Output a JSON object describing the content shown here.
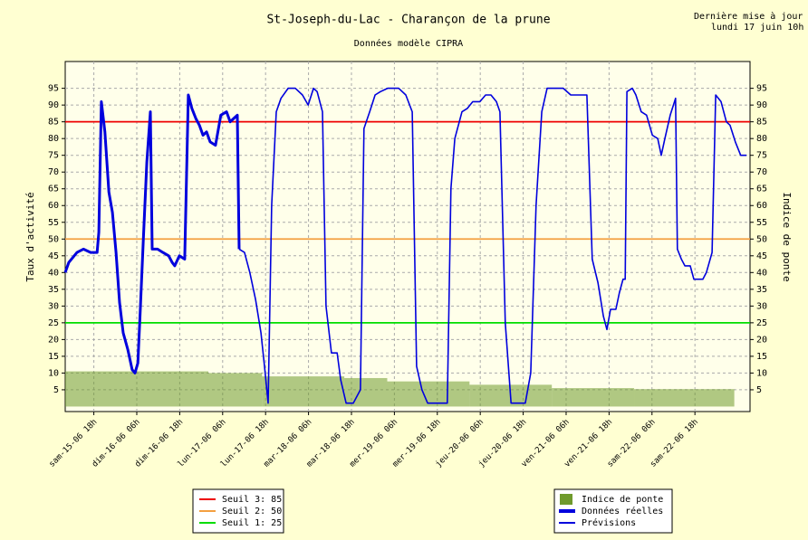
{
  "chart_data": {
    "type": "line",
    "title": "St-Joseph-du-Lac - Charançon de la prune",
    "subtitle": "Données modèle CIPRA",
    "update_lines": [
      "Dernière mise à jour",
      "lundi 17 juin 10h"
    ],
    "y_label": "Taux d'activité",
    "y2_label": "Indice de ponte",
    "xlim": [
      0,
      191.4
    ],
    "xticks": [
      {
        "value": 8,
        "label": "sam-15-06 18h"
      },
      {
        "value": 20,
        "label": "dim-16-06 06h"
      },
      {
        "value": 32,
        "label": "dim-16-06 18h"
      },
      {
        "value": 44,
        "label": "lun-17-06 06h"
      },
      {
        "value": 56,
        "label": "lun-17-06 18h"
      },
      {
        "value": 68,
        "label": "mar-18-06 06h"
      },
      {
        "value": 80,
        "label": "mar-18-06 18h"
      },
      {
        "value": 92,
        "label": "mer-19-06 06h"
      },
      {
        "value": 104,
        "label": "mer-19-06 18h"
      },
      {
        "value": 116,
        "label": "jeu-20-06 06h"
      },
      {
        "value": 128,
        "label": "jeu-20-06 18h"
      },
      {
        "value": 140,
        "label": "ven-21-06 06h"
      },
      {
        "value": 152,
        "label": "ven-21-06 18h"
      },
      {
        "value": 164,
        "label": "sam-22-06 06h"
      },
      {
        "value": 176,
        "label": "sam-22-06 18h"
      }
    ],
    "ylim": [
      -1.5,
      103
    ],
    "yticks": [
      5,
      10,
      15,
      20,
      25,
      30,
      35,
      40,
      45,
      50,
      55,
      60,
      65,
      70,
      75,
      80,
      85,
      90,
      95
    ],
    "grid": true,
    "thresholds": [
      {
        "label": "Seuil 3: 85",
        "value": 85,
        "color": "#ee0000"
      },
      {
        "label": "Seuil 2: 50",
        "value": 50,
        "color": "#f4a040"
      },
      {
        "label": "Seuil 1: 25",
        "value": 25,
        "color": "#00dd00"
      }
    ],
    "series": [
      {
        "name": "Indice de ponte",
        "type": "bar",
        "color": "#6f9a2c",
        "bins": [
          0,
          40,
          55,
          78,
          90,
          113,
          136,
          159,
          187
        ],
        "values": [
          10.5,
          10,
          9,
          8.5,
          7.5,
          6.5,
          5.5,
          5.2
        ]
      },
      {
        "name": "Données réelles",
        "type": "line",
        "style": "thick",
        "color": "#0000dd",
        "x": [
          0.0,
          1.0,
          3.3,
          5.1,
          7.1,
          8.9,
          9.4,
          10.1,
          11.1,
          12.2,
          13.2,
          14.2,
          15.2,
          16.2,
          17.5,
          18.7,
          19.5,
          20.3,
          21.0,
          21.8,
          22.8,
          23.8,
          24.3,
          25.8,
          27.3,
          28.9,
          29.9,
          30.6,
          31.9,
          33.4,
          34.4,
          35.4,
          36.5,
          37.5,
          38.5,
          39.5,
          40.5,
          42.0,
          43.5,
          45.1,
          46.1,
          47.1,
          48.1,
          48.6
        ],
        "values": [
          40,
          43,
          46,
          47,
          46,
          46,
          52,
          91,
          82,
          64,
          58,
          46,
          31,
          22,
          17,
          11,
          10,
          13,
          29,
          49,
          73,
          88,
          47,
          47,
          46,
          45,
          43,
          42,
          45,
          44,
          93,
          89,
          86,
          84,
          81,
          82,
          79,
          78,
          87,
          88,
          85,
          86,
          87,
          47
        ]
      },
      {
        "name": "Prévisions",
        "type": "line",
        "style": "thin",
        "color": "#0000dd",
        "x": [
          48.6,
          50.1,
          51.6,
          53.2,
          54.7,
          55.7,
          56.7,
          57.7,
          59.0,
          60.3,
          62.3,
          64.3,
          66.3,
          67.9,
          69.4,
          70.4,
          71.9,
          72.9,
          74.4,
          76.0,
          77.0,
          78.5,
          80.5,
          82.5,
          83.5,
          85.1,
          86.6,
          88.1,
          90.1,
          93.2,
          95.2,
          97.0,
          98.2,
          99.7,
          101.3,
          106.8,
          107.8,
          108.9,
          110.9,
          112.4,
          113.9,
          115.9,
          117.5,
          119.0,
          120.5,
          121.5,
          123.0,
          124.6,
          128.6,
          130.1,
          131.6,
          133.2,
          134.7,
          139.2,
          141.3,
          145.8,
          147.3,
          148.9,
          150.4,
          151.4,
          152.4,
          153.9,
          154.9,
          155.9,
          156.5,
          157.0,
          158.5,
          159.5,
          161.0,
          162.5,
          164.1,
          165.6,
          166.6,
          167.6,
          169.1,
          170.6,
          171.1,
          172.2,
          173.2,
          174.7,
          175.7,
          178.2,
          179.2,
          180.8,
          181.8,
          183.3,
          184.8,
          185.8,
          187.3,
          188.8,
          190.4
        ],
        "values": [
          47,
          46,
          40,
          32,
          22,
          12,
          1,
          60,
          88,
          92,
          95,
          95,
          93,
          90,
          95,
          94,
          88,
          30,
          16,
          16,
          8,
          1,
          1,
          5,
          83,
          88,
          93,
          94,
          95,
          95,
          93,
          88,
          12,
          5,
          1,
          1,
          65,
          80,
          88,
          89,
          91,
          91,
          93,
          93,
          91,
          88,
          25,
          1,
          1,
          10,
          60,
          88,
          95,
          95,
          93,
          93,
          44,
          37,
          27,
          23,
          29,
          29,
          34,
          38,
          38,
          94,
          95,
          93,
          88,
          87,
          81,
          80,
          75,
          80,
          87,
          92,
          47,
          44,
          42,
          42,
          38,
          38,
          40,
          46,
          93,
          91,
          85,
          84,
          79,
          75,
          75
        ]
      }
    ]
  }
}
